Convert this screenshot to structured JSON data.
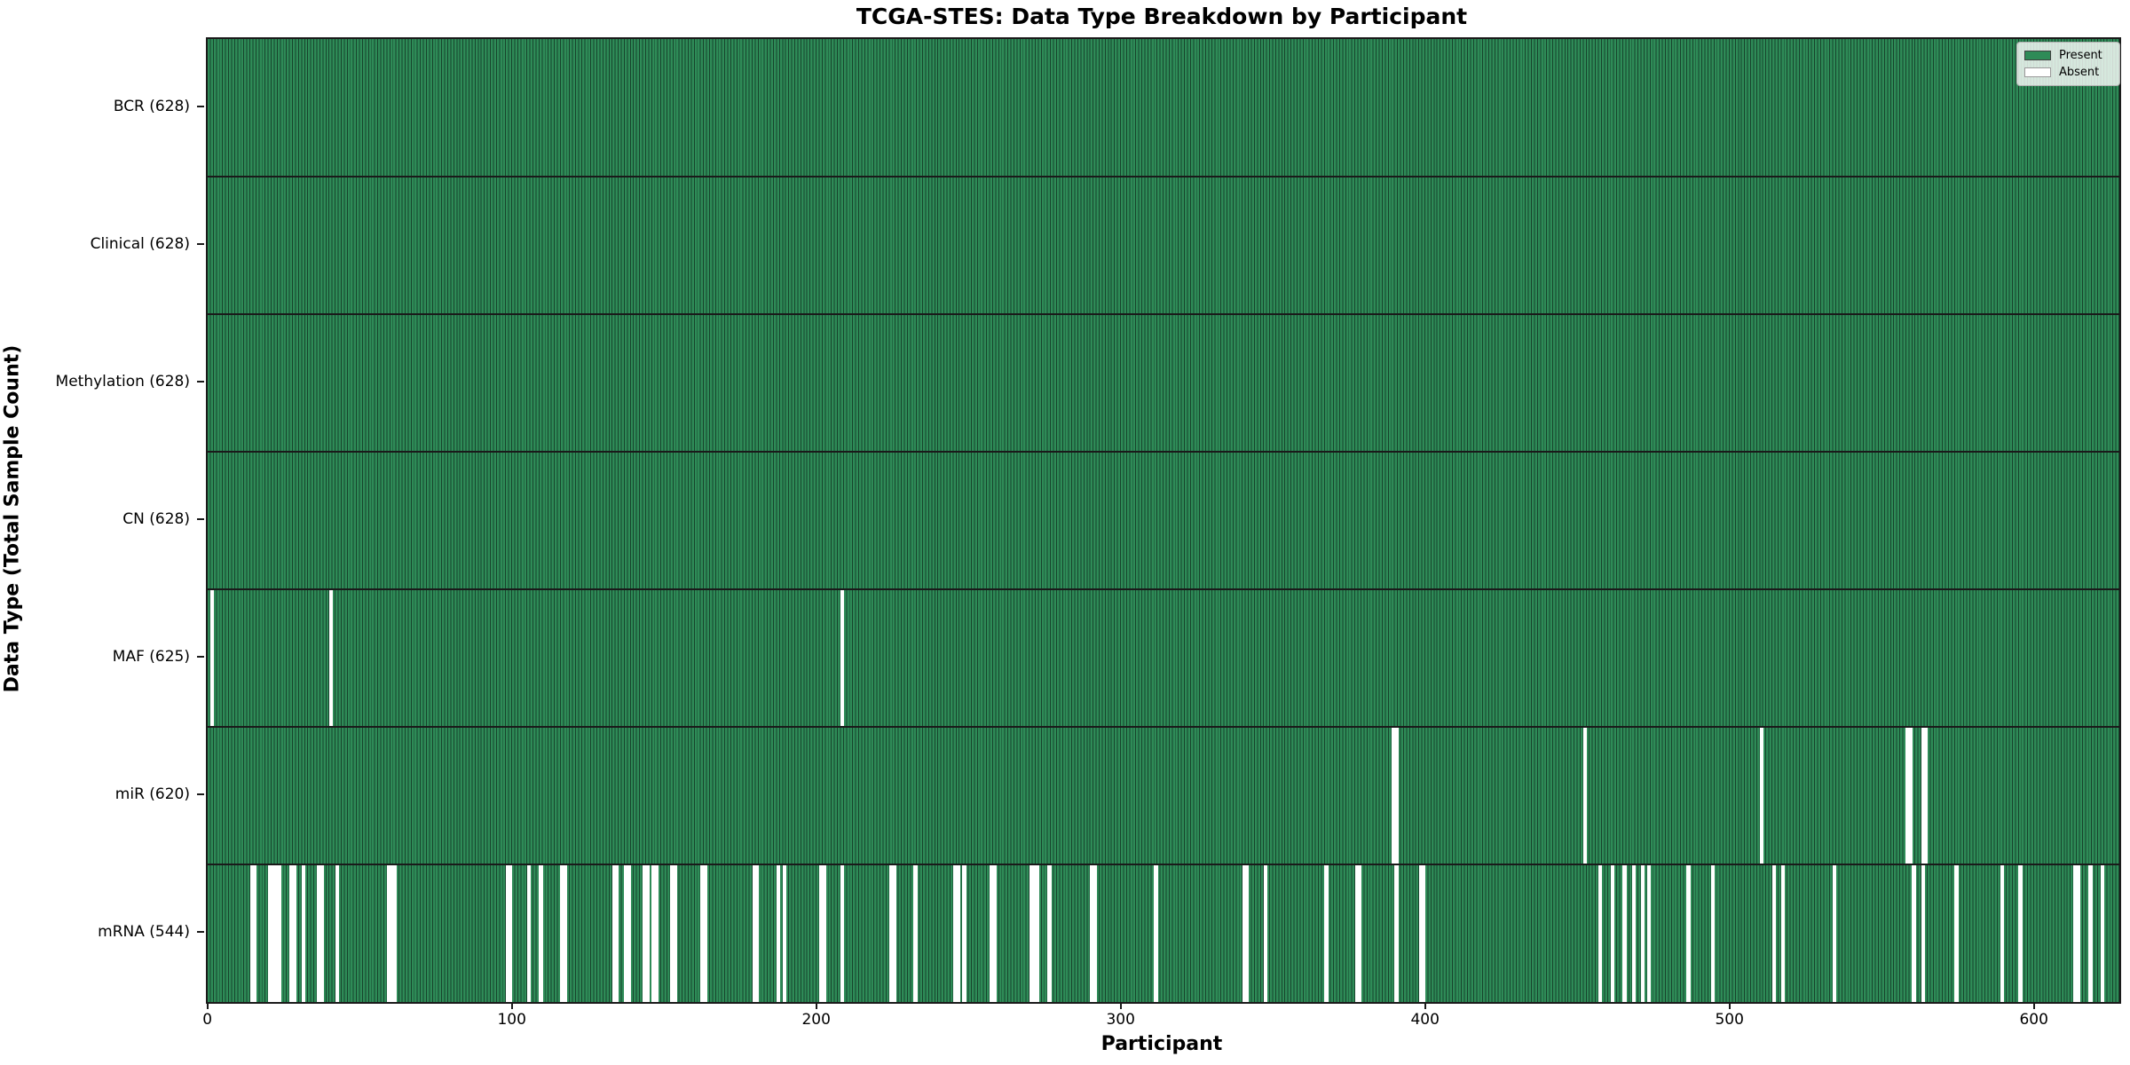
{
  "chart_data": {
    "type": "heatmap",
    "title": "TCGA-STES: Data Type Breakdown by Participant",
    "xlabel": "Participant",
    "ylabel": "Data Type (Total Sample Count)",
    "n_participants": 628,
    "x_ticks": [
      0,
      100,
      200,
      300,
      400,
      500,
      600
    ],
    "xlim": [
      -0.5,
      627.5
    ],
    "grid": false,
    "legend_position": "upper right",
    "colors": {
      "present": "#2e8b57",
      "bar_edge": "#17432c",
      "absent": "#ffffff"
    },
    "legend": [
      {
        "label": "Present",
        "color": "#2e8b57"
      },
      {
        "label": "Absent",
        "color": "#ffffff"
      }
    ],
    "rows": [
      {
        "label": "BCR (628)",
        "name": "BCR",
        "total": 628,
        "absent": []
      },
      {
        "label": "Clinical (628)",
        "name": "Clinical",
        "total": 628,
        "absent": []
      },
      {
        "label": "Methylation (628)",
        "name": "Methylation",
        "total": 628,
        "absent": []
      },
      {
        "label": "CN (628)",
        "name": "CN",
        "total": 628,
        "absent": []
      },
      {
        "label": "MAF (625)",
        "name": "MAF",
        "total": 625,
        "absent": [
          1,
          40,
          208
        ]
      },
      {
        "label": "miR (620)",
        "name": "miR",
        "total": 620,
        "absent": [
          389,
          390,
          452,
          510,
          558,
          559,
          563,
          564
        ]
      },
      {
        "label": "mRNA (544)",
        "name": "mRNA",
        "total": 544,
        "absent": [
          14,
          15,
          20,
          21,
          22,
          23,
          27,
          28,
          31,
          36,
          37,
          42,
          59,
          60,
          61,
          98,
          99,
          105,
          109,
          116,
          117,
          133,
          134,
          137,
          138,
          143,
          144,
          146,
          147,
          152,
          153,
          162,
          163,
          179,
          180,
          187,
          189,
          201,
          202,
          208,
          224,
          225,
          232,
          245,
          246,
          248,
          257,
          258,
          270,
          271,
          272,
          276,
          290,
          291,
          311,
          340,
          341,
          347,
          367,
          377,
          378,
          390,
          398,
          399,
          457,
          461,
          465,
          468,
          471,
          473,
          486,
          494,
          514,
          517,
          534,
          560,
          563,
          574,
          589,
          595,
          613,
          614,
          618,
          622
        ]
      }
    ]
  }
}
